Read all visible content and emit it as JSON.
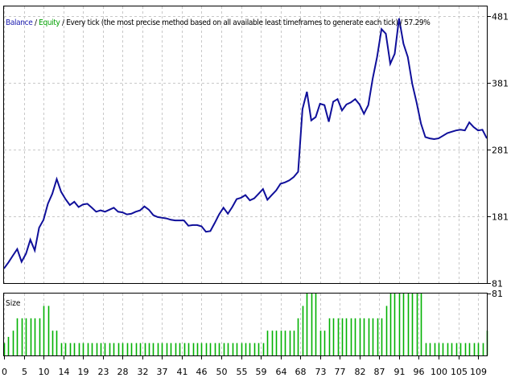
{
  "header": {
    "balance_label": "Balance",
    "sep1": " / ",
    "equity_label": "Equity",
    "sep2": " / ",
    "description": "Every tick (the most precise method based on all available least timeframes to generate each tick)",
    "sep3": " / ",
    "quality": "57.29%"
  },
  "colors": {
    "balance": "#0f0f9a",
    "equity": "#00b000",
    "grid": "#c8c8c8",
    "frame": "#000000"
  },
  "chart_data": [
    {
      "type": "line",
      "title": "",
      "ylim": [
        81,
        496
      ],
      "yticks": [
        81,
        181,
        281,
        381,
        481
      ],
      "xlim": [
        0,
        110
      ],
      "grid": true,
      "series": [
        {
          "name": "Balance",
          "x": [
            0,
            1,
            2,
            3,
            4,
            5,
            6,
            7,
            8,
            9,
            10,
            11,
            12,
            13,
            14,
            15,
            16,
            17,
            18,
            19,
            20,
            21,
            22,
            23,
            24,
            25,
            26,
            27,
            28,
            29,
            30,
            31,
            32,
            33,
            34,
            35,
            36,
            37,
            38,
            39,
            40,
            41,
            42,
            43,
            44,
            45,
            46,
            47,
            48,
            49,
            50,
            51,
            52,
            53,
            54,
            55,
            56,
            57,
            58,
            59,
            60,
            61,
            62,
            63,
            64,
            65,
            66,
            67,
            68,
            69,
            70,
            71,
            72,
            73,
            74,
            75,
            76,
            77,
            78,
            79,
            80,
            81,
            82,
            83,
            84,
            85,
            86,
            87,
            88,
            89,
            90,
            91,
            92,
            93,
            94,
            95,
            96,
            97,
            98,
            99,
            100,
            101,
            102,
            103,
            104,
            105,
            106,
            107,
            108,
            109,
            110
          ],
          "y": [
            103,
            112,
            122,
            132,
            113,
            125,
            146,
            130,
            164,
            176,
            200,
            215,
            237,
            218,
            207,
            198,
            203,
            195,
            199,
            200,
            194,
            188,
            190,
            188,
            191,
            194,
            188,
            187,
            184,
            185,
            188,
            190,
            196,
            191,
            183,
            180,
            179,
            178,
            176,
            175,
            175,
            175,
            167,
            168,
            168,
            166,
            158,
            159,
            171,
            184,
            194,
            185,
            195,
            207,
            209,
            213,
            205,
            208,
            215,
            222,
            206,
            213,
            220,
            230,
            232,
            235,
            240,
            248,
            342,
            368,
            325,
            330,
            350,
            348,
            323,
            353,
            357,
            340,
            349,
            352,
            357,
            349,
            335,
            348,
            388,
            420,
            462,
            455,
            410,
            425,
            478,
            440,
            420,
            380,
            352,
            320,
            300,
            298,
            297,
            298,
            302,
            306,
            308,
            310,
            311,
            310,
            322,
            315,
            310,
            311,
            298
          ],
          "color": "#0f0f9a"
        }
      ]
    },
    {
      "type": "bar",
      "title": "",
      "ylabel": "Size",
      "x": [
        0,
        1,
        2,
        3,
        4,
        5,
        6,
        7,
        8,
        9,
        10,
        11,
        12,
        13,
        14,
        15,
        16,
        17,
        18,
        19,
        20,
        21,
        22,
        23,
        24,
        25,
        26,
        27,
        28,
        29,
        30,
        31,
        32,
        33,
        34,
        35,
        36,
        37,
        38,
        39,
        40,
        41,
        42,
        43,
        44,
        45,
        46,
        47,
        48,
        49,
        50,
        51,
        52,
        53,
        54,
        55,
        56,
        57,
        58,
        59,
        60,
        61,
        62,
        63,
        64,
        65,
        66,
        67,
        68,
        69,
        70,
        71,
        72,
        73,
        74,
        75,
        76,
        77,
        78,
        79,
        80,
        81,
        82,
        83,
        84,
        85,
        86,
        87,
        88,
        89,
        90,
        91,
        92,
        93,
        94,
        95,
        96,
        97,
        98,
        99,
        100,
        101,
        102,
        103,
        104,
        105,
        106,
        107,
        108,
        109,
        110
      ],
      "values": [
        2,
        3,
        4,
        6,
        6,
        6,
        6,
        6,
        6,
        8,
        8,
        4,
        4,
        2,
        2,
        2,
        2,
        2,
        2,
        2,
        2,
        2,
        2,
        2,
        2,
        2,
        2,
        2,
        2,
        2,
        2,
        2,
        2,
        2,
        2,
        2,
        2,
        2,
        2,
        2,
        2,
        2,
        2,
        2,
        2,
        2,
        2,
        2,
        2,
        2,
        2,
        2,
        2,
        2,
        2,
        2,
        2,
        2,
        2,
        2,
        4,
        4,
        4,
        4,
        4,
        4,
        4,
        6,
        8,
        10,
        10,
        10,
        4,
        4,
        6,
        6,
        6,
        6,
        6,
        6,
        6,
        6,
        6,
        6,
        6,
        6,
        6,
        8,
        10,
        10,
        10,
        10,
        10,
        10,
        10,
        10,
        2,
        2,
        2,
        2,
        2,
        2,
        2,
        2,
        2,
        2,
        2,
        2,
        2,
        2,
        4
      ],
      "color": "#00b000",
      "ylim": [
        0,
        10
      ]
    }
  ],
  "x_axis": {
    "tick_labels": [
      "0",
      "5",
      "10",
      "14",
      "19",
      "23",
      "28",
      "32",
      "37",
      "41",
      "46",
      "50",
      "55",
      "59",
      "64",
      "68",
      "73",
      "77",
      "82",
      "87",
      "91",
      "96",
      "100",
      "105",
      "109"
    ],
    "tick_positions": [
      0,
      4.5,
      9,
      13.5,
      18,
      22.5,
      27,
      31.5,
      36,
      40.5,
      45,
      49.5,
      54,
      58.5,
      63,
      67.5,
      72,
      76.5,
      81,
      85.5,
      90,
      94.5,
      99,
      103.5,
      108
    ]
  }
}
